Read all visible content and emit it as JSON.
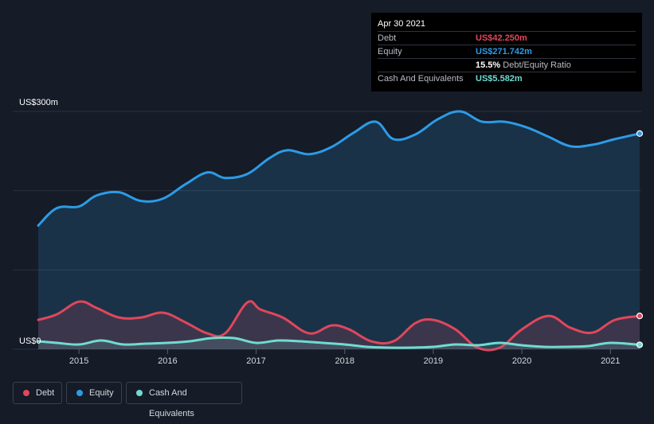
{
  "tooltip": {
    "date": "Apr 30 2021",
    "debt_label": "Debt",
    "debt_value": "US$42.250m",
    "equity_label": "Equity",
    "equity_value": "US$271.742m",
    "ratio_value": "15.5%",
    "ratio_label": "Debt/Equity Ratio",
    "cash_label": "Cash And Equivalents",
    "cash_value": "US$5.582m"
  },
  "legend": {
    "debt": "Debt",
    "equity": "Equity",
    "cash": "Cash And Equivalents"
  },
  "colors": {
    "debt": "#e0475c",
    "equity": "#2d9be6",
    "cash": "#6fdcd0",
    "background": "#151b27"
  },
  "chart_data": {
    "type": "area",
    "y_unit_labels": {
      "top": "US$300m",
      "bottom": "US$0"
    },
    "ylim": [
      0,
      300
    ],
    "xlim": [
      2014.54,
      2021.33
    ],
    "x_ticks": [
      "2015",
      "2016",
      "2017",
      "2018",
      "2019",
      "2020",
      "2021"
    ],
    "grid": true,
    "legend_position": "bottom-left",
    "series": [
      {
        "name": "Equity",
        "x": [
          2014.54,
          2014.75,
          2015.0,
          2015.2,
          2015.45,
          2015.7,
          2015.95,
          2016.2,
          2016.45,
          2016.65,
          2016.9,
          2017.15,
          2017.35,
          2017.6,
          2017.85,
          2018.1,
          2018.35,
          2018.55,
          2018.8,
          2019.05,
          2019.3,
          2019.55,
          2019.8,
          2020.05,
          2020.3,
          2020.55,
          2020.8,
          2021.05,
          2021.33
        ],
        "values": [
          156,
          178,
          180,
          194,
          198,
          187,
          190,
          208,
          223,
          216,
          221,
          241,
          251,
          246,
          255,
          273,
          287,
          265,
          271,
          290,
          300,
          287,
          287,
          280,
          268,
          256,
          258,
          265,
          272
        ]
      },
      {
        "name": "Debt",
        "x": [
          2014.54,
          2014.75,
          2015.0,
          2015.2,
          2015.45,
          2015.7,
          2015.95,
          2016.2,
          2016.45,
          2016.65,
          2016.9,
          2017.05,
          2017.3,
          2017.6,
          2017.85,
          2018.05,
          2018.3,
          2018.55,
          2018.8,
          2019.0,
          2019.25,
          2019.5,
          2019.75,
          2020.0,
          2020.3,
          2020.55,
          2020.8,
          2021.05,
          2021.33
        ],
        "values": [
          37,
          44,
          60,
          52,
          40,
          40,
          46,
          34,
          20,
          20,
          59,
          50,
          40,
          20,
          30,
          25,
          10,
          10,
          33,
          37,
          25,
          2,
          2,
          25,
          42,
          27,
          21,
          37,
          42
        ]
      },
      {
        "name": "Cash And Equivalents",
        "x": [
          2014.54,
          2014.75,
          2015.0,
          2015.25,
          2015.5,
          2015.75,
          2016.0,
          2016.25,
          2016.5,
          2016.75,
          2017.0,
          2017.25,
          2017.5,
          2017.75,
          2018.0,
          2018.25,
          2018.5,
          2018.75,
          2019.0,
          2019.25,
          2019.5,
          2019.75,
          2020.0,
          2020.25,
          2020.5,
          2020.75,
          2021.0,
          2021.33
        ],
        "values": [
          10,
          8,
          6,
          11,
          6,
          7,
          8,
          10,
          14,
          14,
          8,
          11,
          10,
          8,
          6,
          3,
          2,
          2,
          3,
          6,
          5,
          8,
          5,
          3,
          3,
          4,
          8,
          5.6
        ]
      }
    ]
  }
}
